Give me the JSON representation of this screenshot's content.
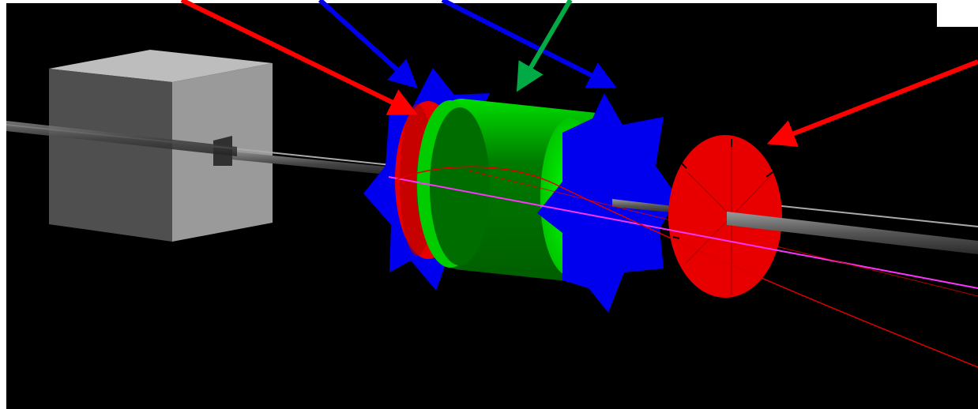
{
  "scene": {
    "background_color": "#000000",
    "frame_color": "#ffffff"
  },
  "components": {
    "target_box": {
      "colors": [
        "#bdbdbd",
        "#9a9a9a",
        "#4f4f4f"
      ]
    },
    "beam_pipe": {
      "color": "#555555"
    },
    "upstream_ring_blue": {
      "color": "#0000ee"
    },
    "upstream_disk_red": {
      "color": "#e80000"
    },
    "central_cylinder_green": {
      "colors": [
        "#00ee00",
        "#007000"
      ]
    },
    "downstream_ring_blue": {
      "color": "#0000ee"
    },
    "downstream_disk_red": {
      "color": "#e80000"
    }
  },
  "tracks": [
    {
      "color": "#aaaaaa"
    },
    {
      "color": "#ff33ff"
    },
    {
      "color": "#dd0000"
    },
    {
      "color": "#dd0000"
    }
  ],
  "pointer_arrows": [
    {
      "color": "#ff0000"
    },
    {
      "color": "#0000ee"
    },
    {
      "color": "#0000ee"
    },
    {
      "color": "#00aa44"
    },
    {
      "color": "#ff0000"
    }
  ]
}
